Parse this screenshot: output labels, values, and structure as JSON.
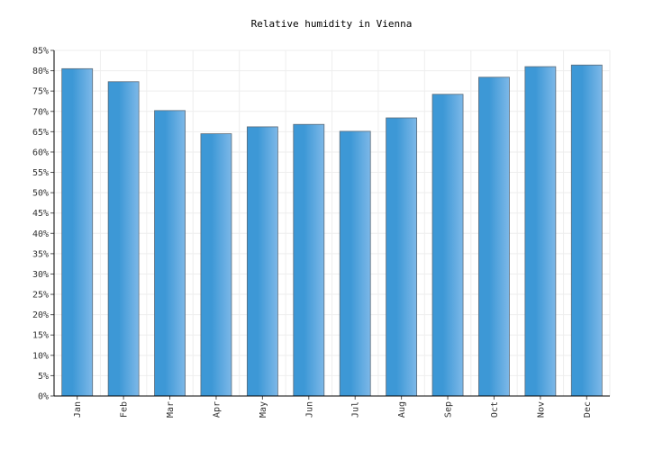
{
  "chart_data": {
    "type": "bar",
    "title": "Relative humidity in Vienna",
    "xlabel": "",
    "ylabel": "",
    "categories": [
      "Jan",
      "Feb",
      "Mar",
      "Apr",
      "May",
      "Jun",
      "Jul",
      "Aug",
      "Sep",
      "Oct",
      "Nov",
      "Dec"
    ],
    "values": [
      80.5,
      77.3,
      70.2,
      64.5,
      66.2,
      66.8,
      65.1,
      68.4,
      74.2,
      78.4,
      81.0,
      81.4
    ],
    "ylim": [
      0,
      85
    ],
    "y_ticks": [
      "0%",
      "5%",
      "10%",
      "15%",
      "20%",
      "25%",
      "30%",
      "35%",
      "40%",
      "45%",
      "50%",
      "55%",
      "60%",
      "65%",
      "70%",
      "75%",
      "80%",
      "85%"
    ],
    "grid": true,
    "legend": "none",
    "colors": {
      "bar_light": "#7db8e8",
      "bar_dark": "#3d98d6",
      "bar_stroke": "#5a6a78",
      "grid": "#eeeeee",
      "axis": "#000000"
    }
  }
}
